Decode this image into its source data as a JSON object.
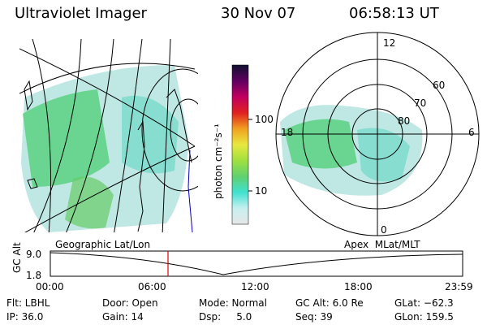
{
  "header": {
    "title": "Ultraviolet Imager",
    "date": "30 Nov 07",
    "time": "06:58:13 UT"
  },
  "colorbar": {
    "unit_label": "photon cm⁻²s⁻¹",
    "ticks": [
      "100",
      "10"
    ],
    "colors": [
      "#e6e6e6",
      "#c8f0f0",
      "#40e0d0",
      "#60d070",
      "#a0e040",
      "#e8e840",
      "#f0a020",
      "#e02020",
      "#c00060",
      "#600060",
      "#101030"
    ]
  },
  "left_panel": {
    "caption": "Geographic Lat/Lon"
  },
  "right_panel": {
    "caption": "Apex  MLat/MLT",
    "mlt_labels": [
      "12",
      "18",
      "6",
      "0"
    ],
    "mlat_labels": [
      "60",
      "70",
      "80"
    ]
  },
  "altitude_plot": {
    "ylabel": "GC Alt",
    "y_ticks": [
      "9.0",
      "1.8"
    ],
    "x_ticks": [
      "00:00",
      "06:00",
      "12:00",
      "18:00",
      "23:59"
    ],
    "current_time_marker": "06:58"
  },
  "footer": {
    "filter": "Flt: LBHL",
    "ip": "IP: 36.0",
    "door": "Door: Open",
    "gain": "Gain: 14",
    "mode": "Mode: Normal",
    "dsp": "Dsp:     5.0",
    "gc_alt": "GC Alt: 6.0 Re",
    "seq": "Seq: 39",
    "glat": "GLat: −62.3",
    "glon": "GLon: 159.5"
  },
  "colors": {
    "marker": "#e00000",
    "track": "#0000c0"
  }
}
